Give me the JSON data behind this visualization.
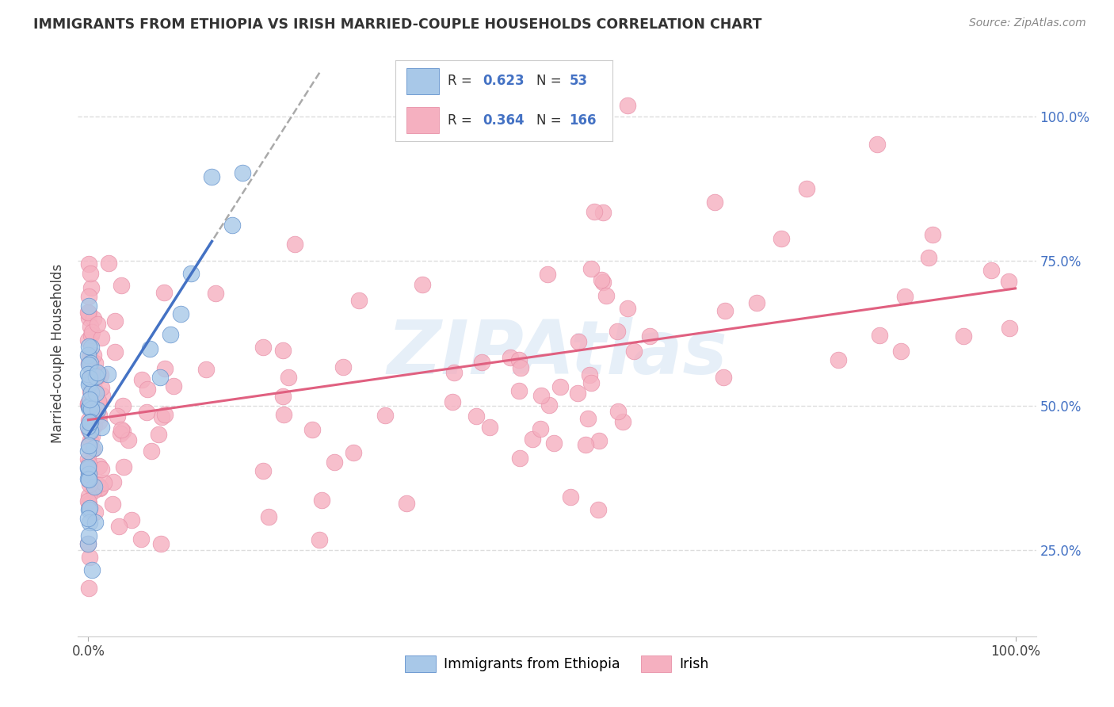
{
  "title": "IMMIGRANTS FROM ETHIOPIA VS IRISH MARRIED-COUPLE HOUSEHOLDS CORRELATION CHART",
  "source": "Source: ZipAtlas.com",
  "ylabel": "Married-couple Households",
  "color_ethiopia": "#a8c8e8",
  "color_irish": "#f5b0c0",
  "line_color_ethiopia": "#4472c4",
  "line_color_irish": "#e06080",
  "watermark_text": "ZIPAtlas",
  "legend_r1": "0.623",
  "legend_n1": "53",
  "legend_r2": "0.364",
  "legend_n2": "166",
  "legend_text_color": "#4472c4",
  "ytick_color": "#4472c4",
  "title_color": "#333333",
  "source_color": "#888888",
  "grid_color": "#dddddd",
  "eth_seed": 7,
  "irish_seed": 42
}
